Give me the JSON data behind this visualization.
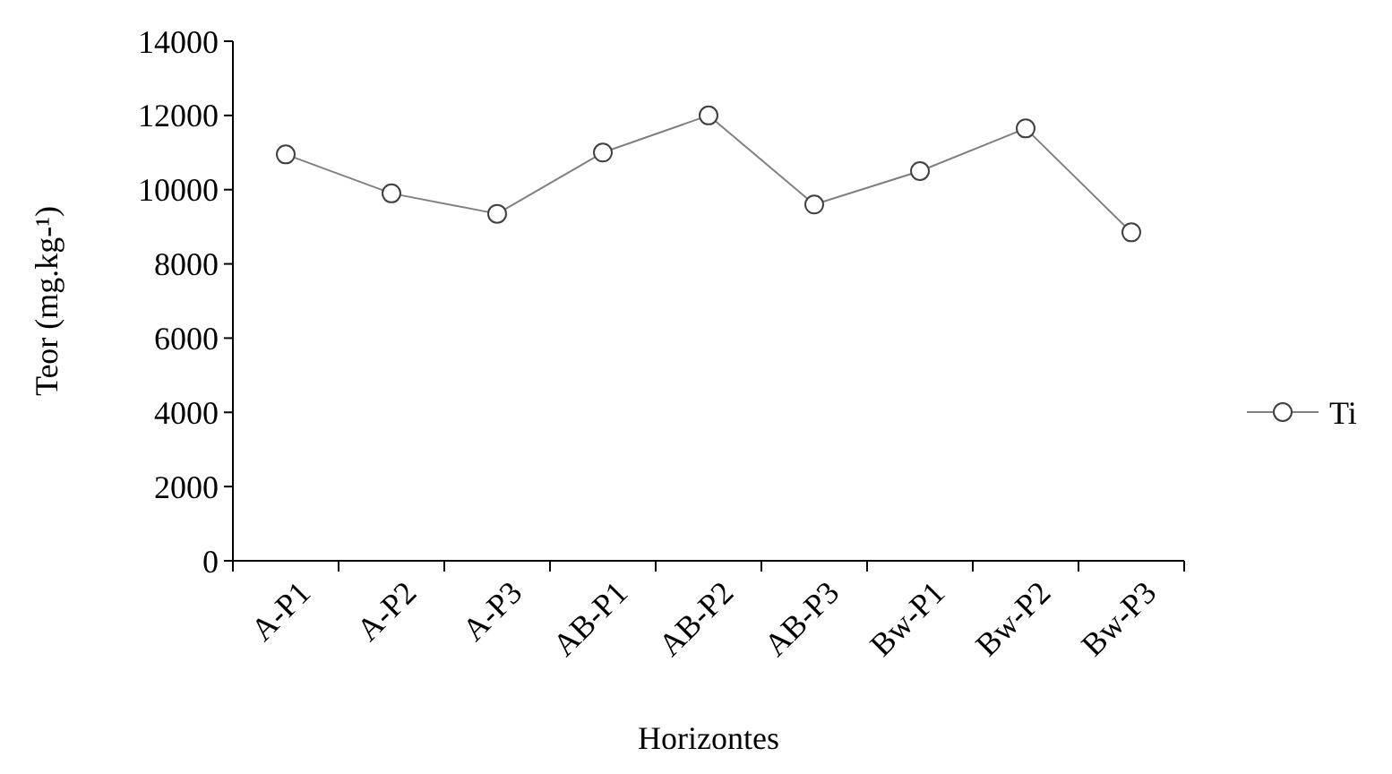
{
  "chart_data": {
    "type": "line",
    "xlabel": "Horizontes",
    "ylabel": "Teor (mg.kg-¹)",
    "categories": [
      "A-P1",
      "A-P2",
      "A-P3",
      "AB-P1",
      "AB-P2",
      "AB-P3",
      "Bw-P1",
      "Bw-P2",
      "Bw-P3"
    ],
    "series": [
      {
        "name": "Ti",
        "color": "#808080",
        "values": [
          10950,
          9900,
          9350,
          11000,
          12000,
          9600,
          10500,
          11650,
          8850
        ]
      }
    ],
    "ylim": [
      0,
      14000
    ],
    "yticks": [
      0,
      2000,
      4000,
      6000,
      8000,
      10000,
      12000,
      14000
    ],
    "grid": false,
    "legend": "right",
    "marker": "circle",
    "line_style": "solid"
  }
}
